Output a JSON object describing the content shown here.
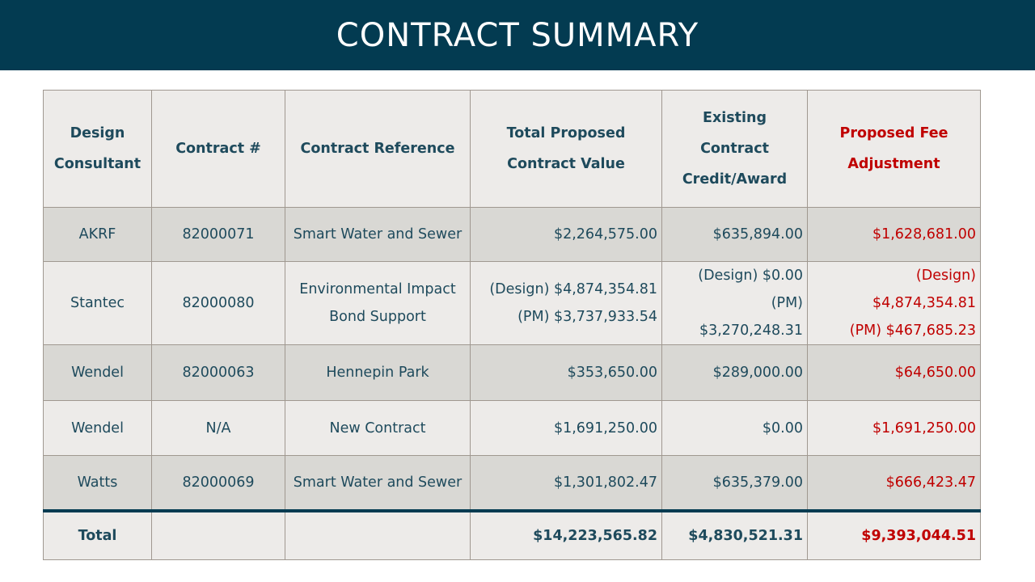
{
  "title": "CONTRACT SUMMARY",
  "headers": [
    "Design Consultant",
    "Contract #",
    "Contract Reference",
    "Total Proposed Contract Value",
    "Existing Contract Credit/Award",
    "Proposed Fee Adjustment"
  ],
  "rows": [
    {
      "consultant": "AKRF",
      "contract": "82000071",
      "reference": [
        "Smart Water and Sewer"
      ],
      "total": [
        "$2,264,575.00"
      ],
      "existing": [
        "$635,894.00"
      ],
      "adjustment": [
        "$1,628,681.00"
      ]
    },
    {
      "consultant": "Stantec",
      "contract": "82000080",
      "reference": [
        "Environmental Impact",
        "Bond Support"
      ],
      "total": [
        "(Design) $4,874,354.81",
        "(PM) $3,737,933.54"
      ],
      "existing": [
        "(Design) $0.00",
        "(PM) $3,270,248.31"
      ],
      "adjustment": [
        "(Design) $4,874,354.81",
        "(PM) $467,685.23"
      ]
    },
    {
      "consultant": "Wendel",
      "contract": "82000063",
      "reference": [
        "Hennepin Park"
      ],
      "total": [
        "$353,650.00"
      ],
      "existing": [
        "$289,000.00"
      ],
      "adjustment": [
        "$64,650.00"
      ]
    },
    {
      "consultant": "Wendel",
      "contract": "N/A",
      "reference": [
        "New Contract"
      ],
      "total": [
        "$1,691,250.00"
      ],
      "existing": [
        "$0.00"
      ],
      "adjustment": [
        "$1,691,250.00"
      ]
    },
    {
      "consultant": "Watts",
      "contract": "82000069",
      "reference": [
        "Smart Water and Sewer"
      ],
      "total": [
        "$1,301,802.47"
      ],
      "existing": [
        "$635,379.00"
      ],
      "adjustment": [
        "$666,423.47"
      ]
    }
  ],
  "totals": {
    "label": "Total",
    "total": "$14,223,565.82",
    "existing": "$4,830,521.31",
    "adjustment": "$9,393,044.51"
  }
}
